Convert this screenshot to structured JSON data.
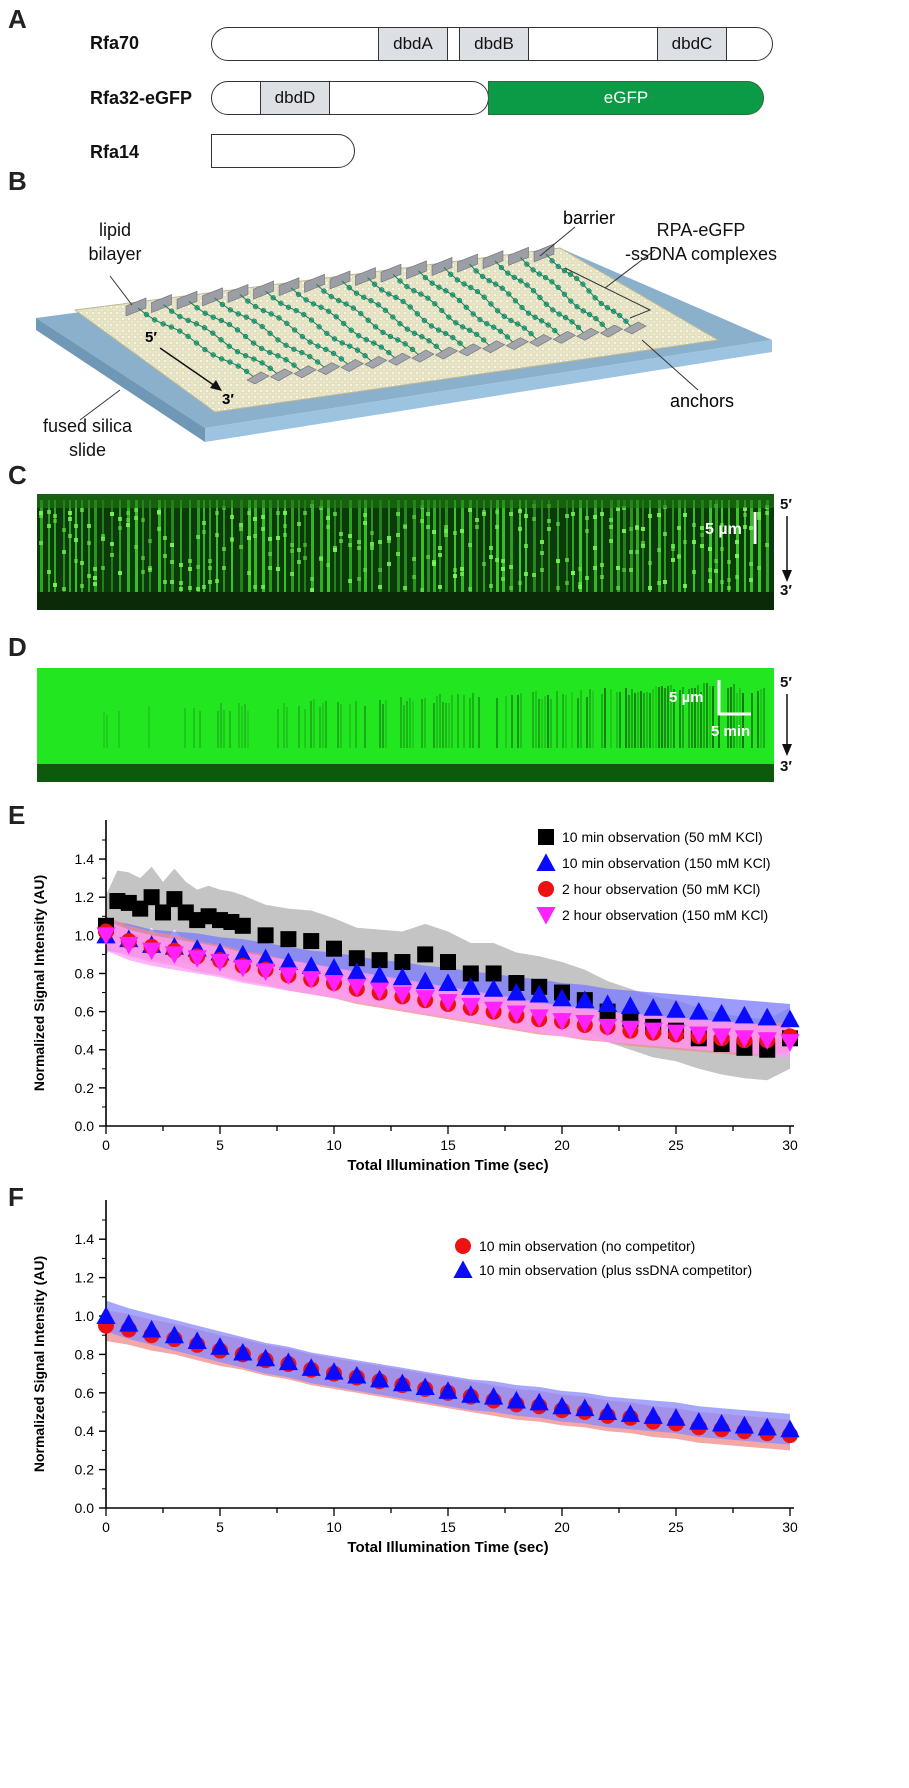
{
  "panels": {
    "a": "A",
    "b": "B",
    "c": "C",
    "d": "D",
    "e": "E",
    "f": "F"
  },
  "proteins": {
    "rfa70": {
      "name": "Rfa70",
      "domains": [
        "dbdA",
        "dbdB",
        "dbdC"
      ]
    },
    "rfa32": {
      "name": "Rfa32-eGFP",
      "domains": [
        "dbdD"
      ],
      "tag": "eGFP"
    },
    "rfa14": {
      "name": "Rfa14"
    }
  },
  "schematic": {
    "lipid_bilayer": "lipid\nbilayer",
    "barrier": "barrier",
    "complexes": "RPA-eGFP\n-ssDNA complexes",
    "five_prime": "5′",
    "three_prime": "3′",
    "fused_silica": "fused silica\nslide",
    "anchors": "anchors"
  },
  "image_c": {
    "scale_label": "5 µm",
    "top_end": "5′",
    "bottom_end": "3′"
  },
  "image_d": {
    "scale_um": "5 µm",
    "scale_min": "5 min",
    "top_end": "5′",
    "bottom_end": "3′"
  },
  "colors": {
    "series_black": "#000000",
    "series_blue": "#0a0aff",
    "series_red": "#ee1111",
    "series_magenta": "#ff22ff",
    "band_gray": "#b8b8b8",
    "egfp": "#0b9a46"
  },
  "chart_data": [
    {
      "type": "scatter",
      "title": "",
      "xlabel": "Total Illumination Time (sec)",
      "ylabel": "Normalized Signal Intensity (AU)",
      "xlim": [
        0,
        30
      ],
      "ylim": [
        0,
        1.5
      ],
      "xticks": [
        0,
        5,
        10,
        15,
        20,
        25,
        30
      ],
      "yticks": [
        "0.0",
        "0.2",
        "0.4",
        "0.6",
        "0.8",
        "1.0",
        "1.2",
        "1.4"
      ],
      "legend_position": "top-right",
      "series": [
        {
          "name": "10 min observation (50 mM KCl)",
          "marker": "square",
          "color": "#000000",
          "band": "#b0b0b0",
          "x": [
            0,
            0.5,
            1,
            1.5,
            2,
            2.5,
            3,
            3.5,
            4,
            4.5,
            5,
            5.5,
            6,
            7,
            8,
            9,
            10,
            11,
            12,
            13,
            14,
            15,
            16,
            17,
            18,
            19,
            20,
            21,
            22,
            23,
            24,
            25,
            26,
            27,
            28,
            29,
            30
          ],
          "y": [
            1.05,
            1.18,
            1.17,
            1.14,
            1.2,
            1.12,
            1.19,
            1.12,
            1.08,
            1.1,
            1.08,
            1.07,
            1.05,
            1.0,
            0.98,
            0.97,
            0.93,
            0.88,
            0.87,
            0.86,
            0.9,
            0.86,
            0.8,
            0.8,
            0.75,
            0.73,
            0.7,
            0.66,
            0.6,
            0.56,
            0.52,
            0.5,
            0.46,
            0.43,
            0.41,
            0.4,
            0.46
          ]
        },
        {
          "name": "10 min observation (150 mM KCl)",
          "marker": "triangle",
          "color": "#0a0aff",
          "band": "#7a7aff",
          "x": [
            0,
            1,
            2,
            3,
            4,
            5,
            6,
            7,
            8,
            9,
            10,
            11,
            12,
            13,
            14,
            15,
            16,
            17,
            18,
            19,
            20,
            21,
            22,
            23,
            24,
            25,
            26,
            27,
            28,
            29,
            30
          ],
          "y": [
            1.0,
            0.98,
            0.95,
            0.94,
            0.93,
            0.91,
            0.9,
            0.88,
            0.86,
            0.84,
            0.83,
            0.81,
            0.79,
            0.78,
            0.76,
            0.75,
            0.73,
            0.72,
            0.7,
            0.69,
            0.67,
            0.66,
            0.64,
            0.63,
            0.62,
            0.61,
            0.6,
            0.59,
            0.58,
            0.57,
            0.56
          ]
        },
        {
          "name": "2 hour observation (50 mM KCl)",
          "marker": "circle",
          "color": "#ee1111",
          "band": "#f08a8a",
          "x": [
            0,
            1,
            2,
            3,
            4,
            5,
            6,
            7,
            8,
            9,
            10,
            11,
            12,
            13,
            14,
            15,
            16,
            17,
            18,
            19,
            20,
            21,
            22,
            23,
            24,
            25,
            26,
            27,
            28,
            29,
            30
          ],
          "y": [
            1.02,
            0.97,
            0.94,
            0.92,
            0.89,
            0.87,
            0.84,
            0.82,
            0.79,
            0.77,
            0.75,
            0.72,
            0.7,
            0.68,
            0.66,
            0.64,
            0.62,
            0.6,
            0.58,
            0.56,
            0.55,
            0.53,
            0.52,
            0.5,
            0.49,
            0.48,
            0.47,
            0.46,
            0.45,
            0.45,
            0.47
          ]
        },
        {
          "name": "2 hour observation (150 mM KCl)",
          "marker": "triangle-down",
          "color": "#ff22ff",
          "band": "#ff9aff",
          "x": [
            0,
            1,
            2,
            3,
            4,
            5,
            6,
            7,
            8,
            9,
            10,
            11,
            12,
            13,
            14,
            15,
            16,
            17,
            18,
            19,
            20,
            21,
            22,
            23,
            24,
            25,
            26,
            27,
            28,
            29,
            30
          ],
          "y": [
            1.0,
            0.95,
            0.92,
            0.9,
            0.88,
            0.86,
            0.83,
            0.81,
            0.79,
            0.77,
            0.75,
            0.73,
            0.71,
            0.69,
            0.67,
            0.65,
            0.63,
            0.61,
            0.59,
            0.57,
            0.55,
            0.54,
            0.52,
            0.51,
            0.5,
            0.49,
            0.48,
            0.47,
            0.46,
            0.45,
            0.44
          ]
        }
      ]
    },
    {
      "type": "scatter",
      "title": "",
      "xlabel": "Total Illumination Time (sec)",
      "ylabel": "Normalized Signal Intensity (AU)",
      "xlim": [
        0,
        30
      ],
      "ylim": [
        0,
        1.5
      ],
      "xticks": [
        0,
        5,
        10,
        15,
        20,
        25,
        30
      ],
      "yticks": [
        "0.0",
        "0.2",
        "0.4",
        "0.6",
        "0.8",
        "1.0",
        "1.2",
        "1.4"
      ],
      "legend_position": "center-right",
      "series": [
        {
          "name": "10 min observation (no competitor)",
          "marker": "circle",
          "color": "#ee1111",
          "band": "#f08a8a",
          "x": [
            0,
            1,
            2,
            3,
            4,
            5,
            6,
            7,
            8,
            9,
            10,
            11,
            12,
            13,
            14,
            15,
            16,
            17,
            18,
            19,
            20,
            21,
            22,
            23,
            24,
            25,
            26,
            27,
            28,
            29,
            30
          ],
          "y": [
            0.95,
            0.93,
            0.9,
            0.88,
            0.85,
            0.82,
            0.8,
            0.77,
            0.75,
            0.72,
            0.7,
            0.68,
            0.66,
            0.64,
            0.62,
            0.6,
            0.58,
            0.56,
            0.54,
            0.53,
            0.51,
            0.5,
            0.48,
            0.47,
            0.45,
            0.44,
            0.42,
            0.41,
            0.4,
            0.39,
            0.38
          ]
        },
        {
          "name": "10 min observation (plus ssDNA competitor)",
          "marker": "triangle",
          "color": "#0a0aff",
          "band": "#8888ff",
          "x": [
            0,
            1,
            2,
            3,
            4,
            5,
            6,
            7,
            8,
            9,
            10,
            11,
            12,
            13,
            14,
            15,
            16,
            17,
            18,
            19,
            20,
            21,
            22,
            23,
            24,
            25,
            26,
            27,
            28,
            29,
            30
          ],
          "y": [
            1.0,
            0.96,
            0.93,
            0.9,
            0.87,
            0.84,
            0.81,
            0.78,
            0.76,
            0.73,
            0.71,
            0.69,
            0.67,
            0.65,
            0.63,
            0.61,
            0.59,
            0.58,
            0.56,
            0.55,
            0.53,
            0.52,
            0.5,
            0.49,
            0.48,
            0.47,
            0.45,
            0.44,
            0.43,
            0.42,
            0.41
          ]
        }
      ]
    }
  ]
}
